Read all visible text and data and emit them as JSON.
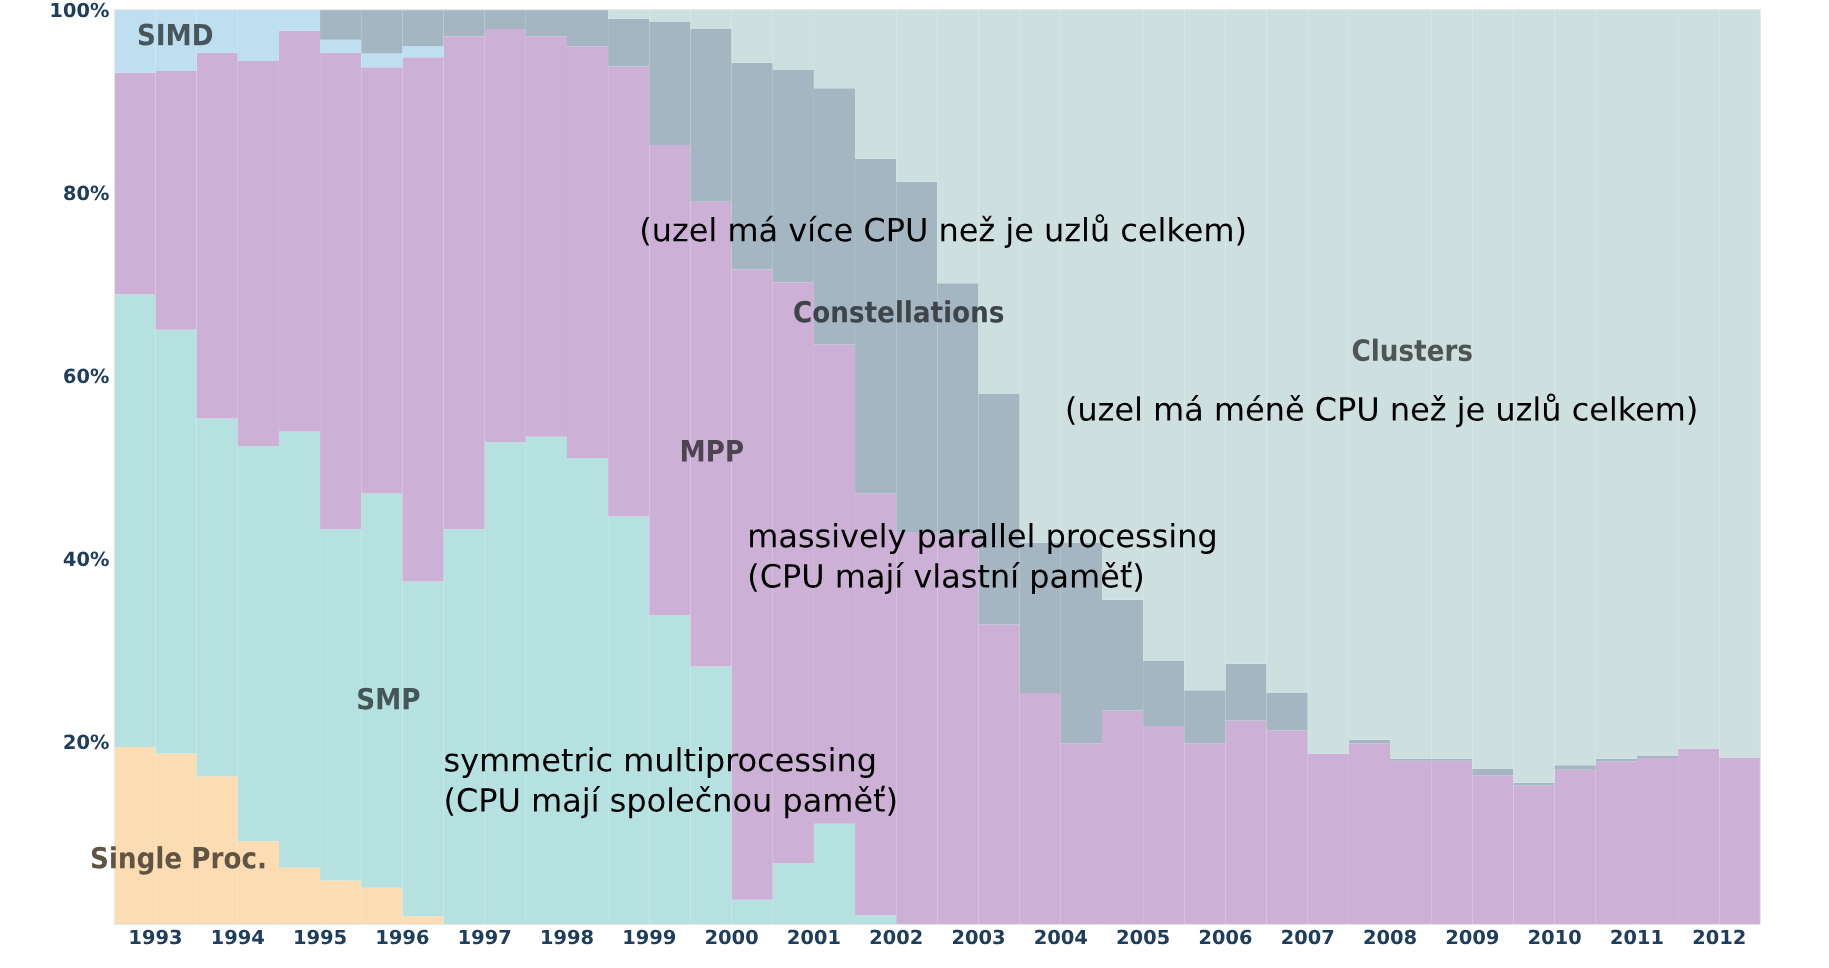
{
  "chart_data": {
    "type": "bar",
    "stacked": true,
    "legend": false,
    "grid": false,
    "x": [
      1993.25,
      1993.75,
      1994.25,
      1994.75,
      1995.25,
      1995.75,
      1996.25,
      1996.75,
      1997.25,
      1997.75,
      1998.25,
      1998.75,
      1999.25,
      1999.75,
      2000.25,
      2000.75,
      2001.25,
      2001.75,
      2002.25,
      2002.75,
      2003.25,
      2003.75,
      2004.25,
      2004.75,
      2005.25,
      2005.75,
      2006.25,
      2006.75,
      2007.25,
      2007.75,
      2008.25,
      2008.75,
      2009.25,
      2009.75,
      2010.25,
      2010.75,
      2011.25,
      2011.75,
      2012.25,
      2012.75
    ],
    "xlim": [
      1993,
      2013
    ],
    "xticks": [
      {
        "value": 1993.5,
        "label": "1993"
      },
      {
        "value": 1994.5,
        "label": "1994"
      },
      {
        "value": 1995.5,
        "label": "1995"
      },
      {
        "value": 1996.5,
        "label": "1996"
      },
      {
        "value": 1997.5,
        "label": "1997"
      },
      {
        "value": 1998.5,
        "label": "1998"
      },
      {
        "value": 1999.5,
        "label": "1999"
      },
      {
        "value": 2000.5,
        "label": "2000"
      },
      {
        "value": 2001.5,
        "label": "2001"
      },
      {
        "value": 2002.5,
        "label": "2002"
      },
      {
        "value": 2003.5,
        "label": "2003"
      },
      {
        "value": 2004.5,
        "label": "2004"
      },
      {
        "value": 2005.5,
        "label": "2005"
      },
      {
        "value": 2006.5,
        "label": "2006"
      },
      {
        "value": 2007.5,
        "label": "2007"
      },
      {
        "value": 2008.5,
        "label": "2008"
      },
      {
        "value": 2009.5,
        "label": "2009"
      },
      {
        "value": 2010.5,
        "label": "2010"
      },
      {
        "value": 2011.5,
        "label": "2011"
      },
      {
        "value": 2012.5,
        "label": "2012"
      }
    ],
    "ylim": [
      0,
      100
    ],
    "yticks": [
      {
        "value": 20,
        "label": "20%"
      },
      {
        "value": 40,
        "label": "40%"
      },
      {
        "value": 60,
        "label": "60%"
      },
      {
        "value": 80,
        "label": "80%"
      },
      {
        "value": 100,
        "label": "100%"
      }
    ],
    "series": [
      {
        "name": "Single Proc.",
        "color": "#fcdcb2",
        "values": [
          19.4,
          18.7,
          16.2,
          9.1,
          6.2,
          4.8,
          4.0,
          0.9,
          0,
          0,
          0,
          0,
          0,
          0,
          0,
          0,
          0,
          0,
          0,
          0,
          0,
          0,
          0,
          0,
          0,
          0,
          0,
          0,
          0,
          0,
          0,
          0,
          0,
          0,
          0,
          0,
          0,
          0,
          0,
          0
        ]
      },
      {
        "name": "SMP",
        "color": "#b5e1e1",
        "values": [
          49.5,
          46.3,
          39.1,
          43.2,
          47.7,
          38.4,
          43.1,
          36.6,
          43.2,
          52.7,
          53.3,
          51.0,
          44.6,
          33.8,
          28.2,
          2.7,
          6.7,
          11.0,
          1.0,
          0,
          0,
          0,
          0,
          0,
          0,
          0,
          0,
          0,
          0,
          0,
          0,
          0,
          0,
          0,
          0,
          0,
          0,
          0,
          0,
          0
        ]
      },
      {
        "name": "MPP",
        "color": "#cdb0d6",
        "values": [
          24.2,
          28.3,
          40.0,
          42.1,
          43.8,
          52.1,
          46.6,
          57.3,
          53.9,
          45.2,
          43.8,
          45.0,
          49.2,
          51.4,
          50.8,
          68.9,
          63.5,
          52.4,
          46.1,
          42.9,
          42.6,
          32.8,
          25.3,
          19.8,
          23.4,
          21.7,
          19.8,
          22.3,
          21.2,
          18.7,
          19.8,
          17.9,
          17.9,
          16.3,
          15.2,
          16.9,
          17.8,
          18.2,
          19.2,
          18.2
        ]
      },
      {
        "name": "SIMD",
        "color": "#bddff0",
        "values": [
          6.9,
          6.7,
          4.7,
          5.6,
          2.3,
          1.4,
          1.5,
          1.2,
          0,
          0,
          0,
          0,
          0,
          0,
          0,
          0,
          0,
          0,
          0,
          0,
          0,
          0,
          0,
          0,
          0,
          0,
          0,
          0,
          0,
          0,
          0,
          0,
          0,
          0,
          0,
          0,
          0,
          0,
          0,
          0
        ]
      },
      {
        "name": "Constellations",
        "color": "#a3b6c2",
        "values": [
          0,
          0,
          0,
          0,
          0,
          3.3,
          4.8,
          4.0,
          2.9,
          2.1,
          2.9,
          4.0,
          5.2,
          13.5,
          18.9,
          22.6,
          23.2,
          28.0,
          36.6,
          38.3,
          27.5,
          25.2,
          16.4,
          21.9,
          12.1,
          7.1,
          5.8,
          6.2,
          4.1,
          0,
          0.4,
          0.2,
          0.2,
          0.7,
          0.3,
          0.5,
          0.3,
          0.2,
          0,
          0
        ]
      },
      {
        "name": "Clusters",
        "color": "#cedfdf",
        "values": [
          0,
          0,
          0,
          0,
          0,
          0,
          0,
          0,
          0,
          0,
          0,
          0,
          1.0,
          1.3,
          2.1,
          5.8,
          6.6,
          8.6,
          16.3,
          18.8,
          29.9,
          42.0,
          58.3,
          58.3,
          64.5,
          71.2,
          74.4,
          71.5,
          74.7,
          81.3,
          79.8,
          81.9,
          81.9,
          83.0,
          84.5,
          82.6,
          81.9,
          81.6,
          80.8,
          81.8
        ]
      }
    ],
    "annotations": [
      "(uzel má více CPU než je uzlů celkem)",
      "massively parallel processing\n(CPU mají vlastní paměť)",
      "symmetric multiprocessing\n(CPU mají společnou paměť)",
      "(uzel má méně CPU než je uzlů celkem)"
    ]
  }
}
